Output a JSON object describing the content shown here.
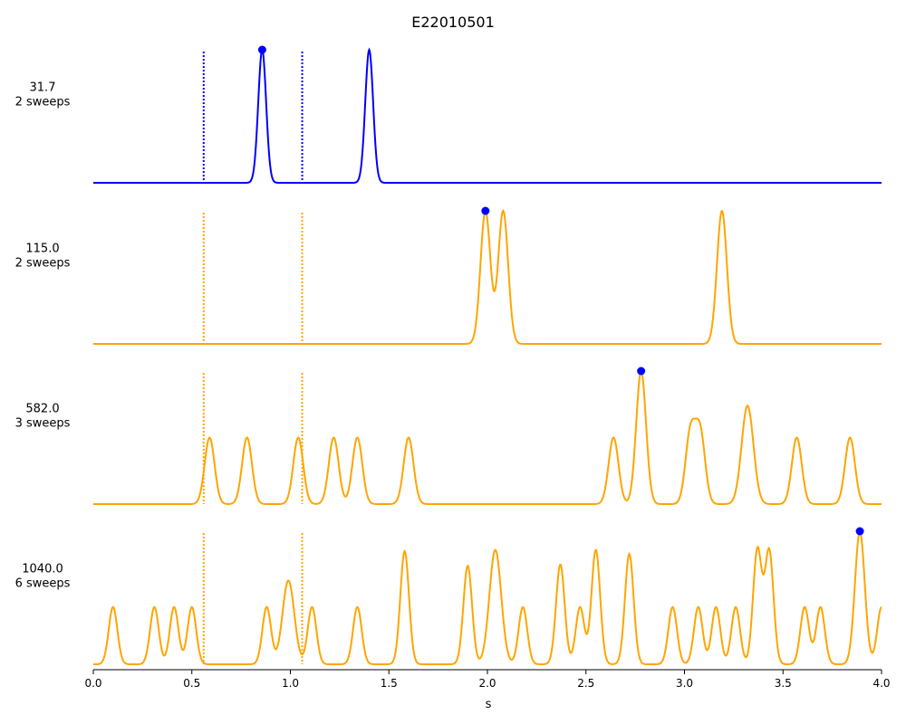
{
  "chart_data": {
    "type": "line",
    "title": "E22010501",
    "xlabel": "s",
    "xlim": [
      0,
      4.0
    ],
    "x_ticks": [
      "0.0",
      "0.5",
      "1.0",
      "1.5",
      "2.0",
      "2.5",
      "3.0",
      "3.5",
      "4.0"
    ],
    "marker_lines_x": [
      0.56,
      1.06
    ],
    "grid": false,
    "colors": {
      "primary": "#0000ff",
      "secondary": "#ffa500",
      "marker": "#0000ff"
    },
    "rows": [
      {
        "label_value": "31.7",
        "label_sweeps": "2 sweeps",
        "color": "#0000ff",
        "baseline": 0.0,
        "peaks": [
          {
            "x": 0.857,
            "height": 1.0,
            "width": 0.02
          },
          {
            "x": 1.4,
            "height": 1.0,
            "width": 0.02
          }
        ],
        "max_point": {
          "x": 0.857,
          "y": 1.0
        }
      },
      {
        "label_value": "115.0",
        "label_sweeps": "2 sweeps",
        "color": "#ffa500",
        "baseline": 0.0,
        "peaks": [
          {
            "x": 1.99,
            "height": 1.0,
            "width": 0.025
          },
          {
            "x": 2.08,
            "height": 1.0,
            "width": 0.025
          },
          {
            "x": 3.19,
            "height": 1.0,
            "width": 0.025
          }
        ],
        "max_point": {
          "x": 1.99,
          "y": 1.0
        }
      },
      {
        "label_value": "582.0",
        "label_sweeps": "3 sweeps",
        "color": "#ffa500",
        "baseline": 0.0,
        "peaks": [
          {
            "x": 0.59,
            "height": 0.5,
            "width": 0.025
          },
          {
            "x": 0.78,
            "height": 0.5,
            "width": 0.025
          },
          {
            "x": 1.04,
            "height": 0.5,
            "width": 0.025
          },
          {
            "x": 1.22,
            "height": 0.5,
            "width": 0.025
          },
          {
            "x": 1.34,
            "height": 0.5,
            "width": 0.025
          },
          {
            "x": 1.6,
            "height": 0.5,
            "width": 0.025
          },
          {
            "x": 2.64,
            "height": 0.5,
            "width": 0.025
          },
          {
            "x": 2.78,
            "height": 1.0,
            "width": 0.025
          },
          {
            "x": 3.03,
            "height": 0.53,
            "width": 0.025
          },
          {
            "x": 3.08,
            "height": 0.53,
            "width": 0.025
          },
          {
            "x": 3.32,
            "height": 0.74,
            "width": 0.03
          },
          {
            "x": 3.57,
            "height": 0.5,
            "width": 0.025
          },
          {
            "x": 3.84,
            "height": 0.5,
            "width": 0.025
          }
        ],
        "max_point": {
          "x": 2.78,
          "y": 1.0
        }
      },
      {
        "label_value": "1040.0",
        "label_sweeps": "6 sweeps",
        "color": "#ffa500",
        "baseline": 0.0,
        "peaks": [
          {
            "x": 0.1,
            "height": 0.43,
            "width": 0.022
          },
          {
            "x": 0.31,
            "height": 0.43,
            "width": 0.022
          },
          {
            "x": 0.41,
            "height": 0.43,
            "width": 0.022
          },
          {
            "x": 0.5,
            "height": 0.43,
            "width": 0.022
          },
          {
            "x": 0.88,
            "height": 0.43,
            "width": 0.022
          },
          {
            "x": 0.99,
            "height": 0.63,
            "width": 0.03
          },
          {
            "x": 1.11,
            "height": 0.43,
            "width": 0.022
          },
          {
            "x": 1.34,
            "height": 0.43,
            "width": 0.022
          },
          {
            "x": 1.58,
            "height": 0.85,
            "width": 0.022
          },
          {
            "x": 1.9,
            "height": 0.74,
            "width": 0.022
          },
          {
            "x": 2.04,
            "height": 0.86,
            "width": 0.03
          },
          {
            "x": 2.18,
            "height": 0.43,
            "width": 0.022
          },
          {
            "x": 2.37,
            "height": 0.75,
            "width": 0.022
          },
          {
            "x": 2.47,
            "height": 0.43,
            "width": 0.022
          },
          {
            "x": 2.55,
            "height": 0.86,
            "width": 0.022
          },
          {
            "x": 2.72,
            "height": 0.83,
            "width": 0.022
          },
          {
            "x": 2.94,
            "height": 0.43,
            "width": 0.022
          },
          {
            "x": 3.07,
            "height": 0.43,
            "width": 0.022
          },
          {
            "x": 3.16,
            "height": 0.43,
            "width": 0.022
          },
          {
            "x": 3.26,
            "height": 0.43,
            "width": 0.022
          },
          {
            "x": 3.37,
            "height": 0.86,
            "width": 0.022
          },
          {
            "x": 3.43,
            "height": 0.85,
            "width": 0.022
          },
          {
            "x": 3.61,
            "height": 0.43,
            "width": 0.022
          },
          {
            "x": 3.69,
            "height": 0.43,
            "width": 0.022
          },
          {
            "x": 3.89,
            "height": 1.0,
            "width": 0.025
          },
          {
            "x": 4.0,
            "height": 0.43,
            "width": 0.022
          }
        ],
        "max_point": {
          "x": 3.89,
          "y": 1.0
        }
      }
    ]
  }
}
